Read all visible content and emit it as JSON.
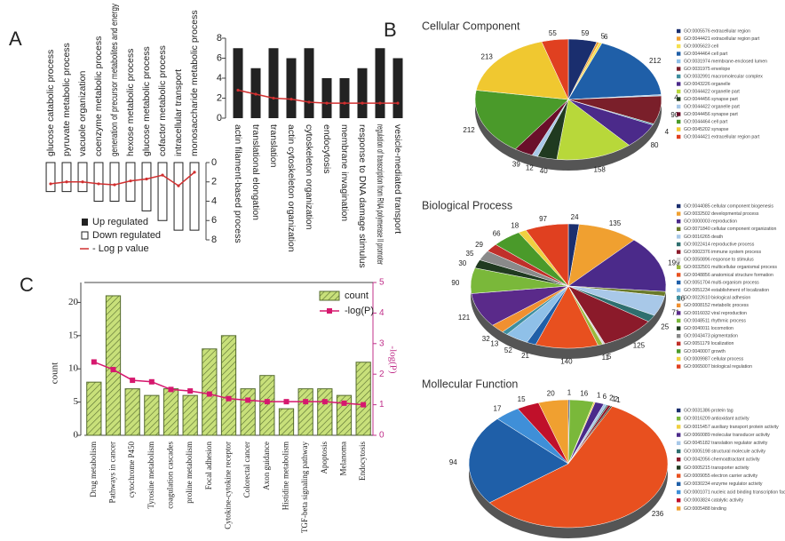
{
  "chart_data": [
    {
      "type": "bar",
      "panel": "A",
      "categories": [
        "actin filament-based process",
        "translational elongation",
        "translation",
        "actin cytoskeleton organization",
        "cytoskeleton organization",
        "endocytosis",
        "membrane invagination",
        "response to DNA damage stimulus",
        "regulation of transcription from RNA polymerase II promoter",
        "vesicle-mediated transport"
      ],
      "series": [
        {
          "name": "Up regulated",
          "type": "bar",
          "color": "#222222",
          "values": [
            7,
            5,
            7,
            6,
            7,
            4,
            4,
            5,
            7,
            6
          ]
        },
        {
          "name": "- Log p value",
          "type": "line",
          "color": "#d03030",
          "values": [
            2.8,
            2.4,
            2.0,
            1.9,
            1.6,
            1.5,
            1.5,
            1.5,
            1.5,
            1.5
          ]
        }
      ],
      "ylim": [
        0,
        8
      ],
      "yticks": [
        0,
        2,
        4,
        6,
        8
      ]
    },
    {
      "type": "bar",
      "inverted": true,
      "categories": [
        "glucose catabolic process",
        "pyruvate metabolic process",
        "vacuole organization",
        "coenzyme metabolic process",
        "generation of precursor metabolites and energy",
        "hexose metabolic process",
        "glucose metabolic process",
        "cofactor metabolic process",
        "intracellular transport",
        "monosaccharide metabolic process"
      ],
      "series": [
        {
          "name": "Down regulated",
          "type": "bar",
          "color": "#ffffff",
          "edgecolor": "#222222",
          "values": [
            3,
            3,
            3,
            4,
            4,
            4,
            5,
            6,
            7,
            7
          ]
        },
        {
          "type": "line",
          "color": "#d03030",
          "values": [
            2.2,
            2.0,
            2.0,
            2.2,
            2.3,
            1.9,
            1.7,
            1.3,
            2.4,
            1.0
          ]
        }
      ],
      "ylim": [
        0,
        8
      ],
      "yticks": [
        0,
        2,
        4,
        6,
        8
      ]
    },
    {
      "type": "pie",
      "panel": "B",
      "title": "Cellular Component",
      "categories": [
        "GO:0005576 extracellular region",
        "GO:0044421 extracellular region part",
        "GO:0005623 cell",
        "GO:0044464 cell part",
        "GO:0031974 membrane-enclosed lumen",
        "GO:0031975 envelope",
        "GO:0032991 macromolecular complex",
        "GO:0043226 organelle",
        "GO:0044422 organelle part",
        "GO:0044456 synapse part",
        "GO:0044422 organelle part",
        "GO:0044456 synapse part",
        "GO:0044464 cell part",
        "GO:0045202 synapse",
        "GO:0044421 extracellular region part"
      ],
      "values": [
        59,
        5,
        6,
        212,
        4,
        90,
        4,
        80,
        158,
        40,
        12,
        39,
        212,
        213,
        55
      ],
      "colors": [
        "#1a2e6e",
        "#f0a030",
        "#f5e050",
        "#1f5fa8",
        "#8fc0e8",
        "#7a1f2a",
        "#3f8f9f",
        "#4b2a8a",
        "#b8d83a",
        "#203a20",
        "#a8c8e8",
        "#6a0f2a",
        "#4a9a2a",
        "#f0c830",
        "#e04020"
      ]
    },
    {
      "type": "pie",
      "title": "Biological Process",
      "categories": [
        "GO:0044085 cellular component biogenesis",
        "GO:0032502 developmental process",
        "GO:0000003 reproduction",
        "GO:0071840 cellular component organization",
        "GO:0016265 death",
        "GO:0022414 reproductive process",
        "GO:0002376 immune system process",
        "GO:0050896 response to stimulus",
        "GO:0032501 multicellular organismal process",
        "GO:0048856 anatomical structure formation",
        "GO:0051704 multi-organism process",
        "GO:0051234 establishment of localization",
        "GO:0022610 biological adhesion",
        "GO:0008152 metabolic process",
        "GO:0016032 viral reproduction",
        "GO:0048511 rhythmic process",
        "GO:0040011 locomotion",
        "GO:0043473 pigmentation",
        "GO:0051179 localization",
        "GO:0040007 growth",
        "GO:0009987 cellular process",
        "GO:0065007 biological regulation"
      ],
      "values": [
        24,
        135,
        199,
        16,
        71,
        25,
        125,
        5,
        11,
        140,
        21,
        52,
        13,
        32,
        121,
        90,
        30,
        35,
        29,
        66,
        18,
        97
      ],
      "colors": [
        "#1a2e6e",
        "#f0a030",
        "#4b2a8a",
        "#6a7a2a",
        "#a8c8e8",
        "#2f6f6f",
        "#8b1a2a",
        "#d8d8d8",
        "#9ab83a",
        "#e8501f",
        "#1f5fa8",
        "#8fc0e8",
        "#3f8f9f",
        "#f09030",
        "#5a2a8a",
        "#7ab83a",
        "#203a20",
        "#8a8a8a",
        "#c0302a",
        "#4a9a2a",
        "#f0d040",
        "#e04020"
      ]
    },
    {
      "type": "pie",
      "title": "Mollecular Function",
      "categories": [
        "GO:0031386 protein tag",
        "GO:0016209 antioxidant activity",
        "GO:0015457 auxiliary transport protein activity",
        "GO:0060089 molecular transducer activity",
        "GO:0045182 translation regulator activity",
        "GO:0005198 structural molecule activity",
        "GO:0042056 chemoattractant activity",
        "GO:0005215 transporter activity",
        "GO:0009055 electron carrier activity",
        "GO:0030234 enzyme regulator activity",
        "GO:0001071 nucleic acid binding transcription factor activity",
        "GO:0003824 catalytic activity",
        "GO:0005488 binding"
      ],
      "values": [
        1,
        16,
        1,
        6,
        2,
        1,
        2,
        1,
        236,
        94,
        17,
        15,
        20
      ],
      "colors": [
        "#1a2e6e",
        "#7ab83a",
        "#f0d040",
        "#4b2a8a",
        "#a8c8e8",
        "#2f6f6f",
        "#8b1a2a",
        "#203a20",
        "#e8501f",
        "#1f5fa8",
        "#3f8fd8",
        "#c0102a",
        "#f0a030"
      ]
    },
    {
      "type": "bar",
      "panel": "C",
      "categories": [
        "Drug metabolism",
        "Pathways in cancer",
        "cytochrome P450",
        "Tyrosine metabolism",
        "coagulation cascades",
        "proline metabolism",
        "Focal adhesion",
        "Cytokine-cytokine receptor",
        "Colorectal cancer",
        "Axon guidance",
        "Histidine metabolism",
        "TGF-beta signaling pathway",
        "Apoptosis",
        "Melanoma",
        "Endocytosis"
      ],
      "series": [
        {
          "name": "count",
          "type": "bar",
          "color": "#c8e07a",
          "edgecolor": "#556b2f",
          "hatch": "////",
          "values": [
            8,
            21,
            7,
            6,
            7,
            6,
            13,
            15,
            7,
            9,
            4,
            7,
            7,
            6,
            11
          ]
        },
        {
          "name": "-log(P)",
          "type": "line",
          "axis": "y2",
          "marker": "square",
          "color": "#d6186e",
          "values": [
            2.4,
            2.15,
            1.8,
            1.75,
            1.5,
            1.45,
            1.35,
            1.2,
            1.15,
            1.1,
            1.1,
            1.1,
            1.1,
            1.05,
            1.0
          ]
        }
      ],
      "ylabel": "count",
      "y2label": "-log(P)",
      "ylim": [
        0,
        23
      ],
      "yticks": [
        0,
        5,
        10,
        15,
        20
      ],
      "y2lim": [
        0,
        5
      ],
      "y2ticks": [
        0,
        1,
        2,
        3,
        4,
        5
      ]
    }
  ]
}
